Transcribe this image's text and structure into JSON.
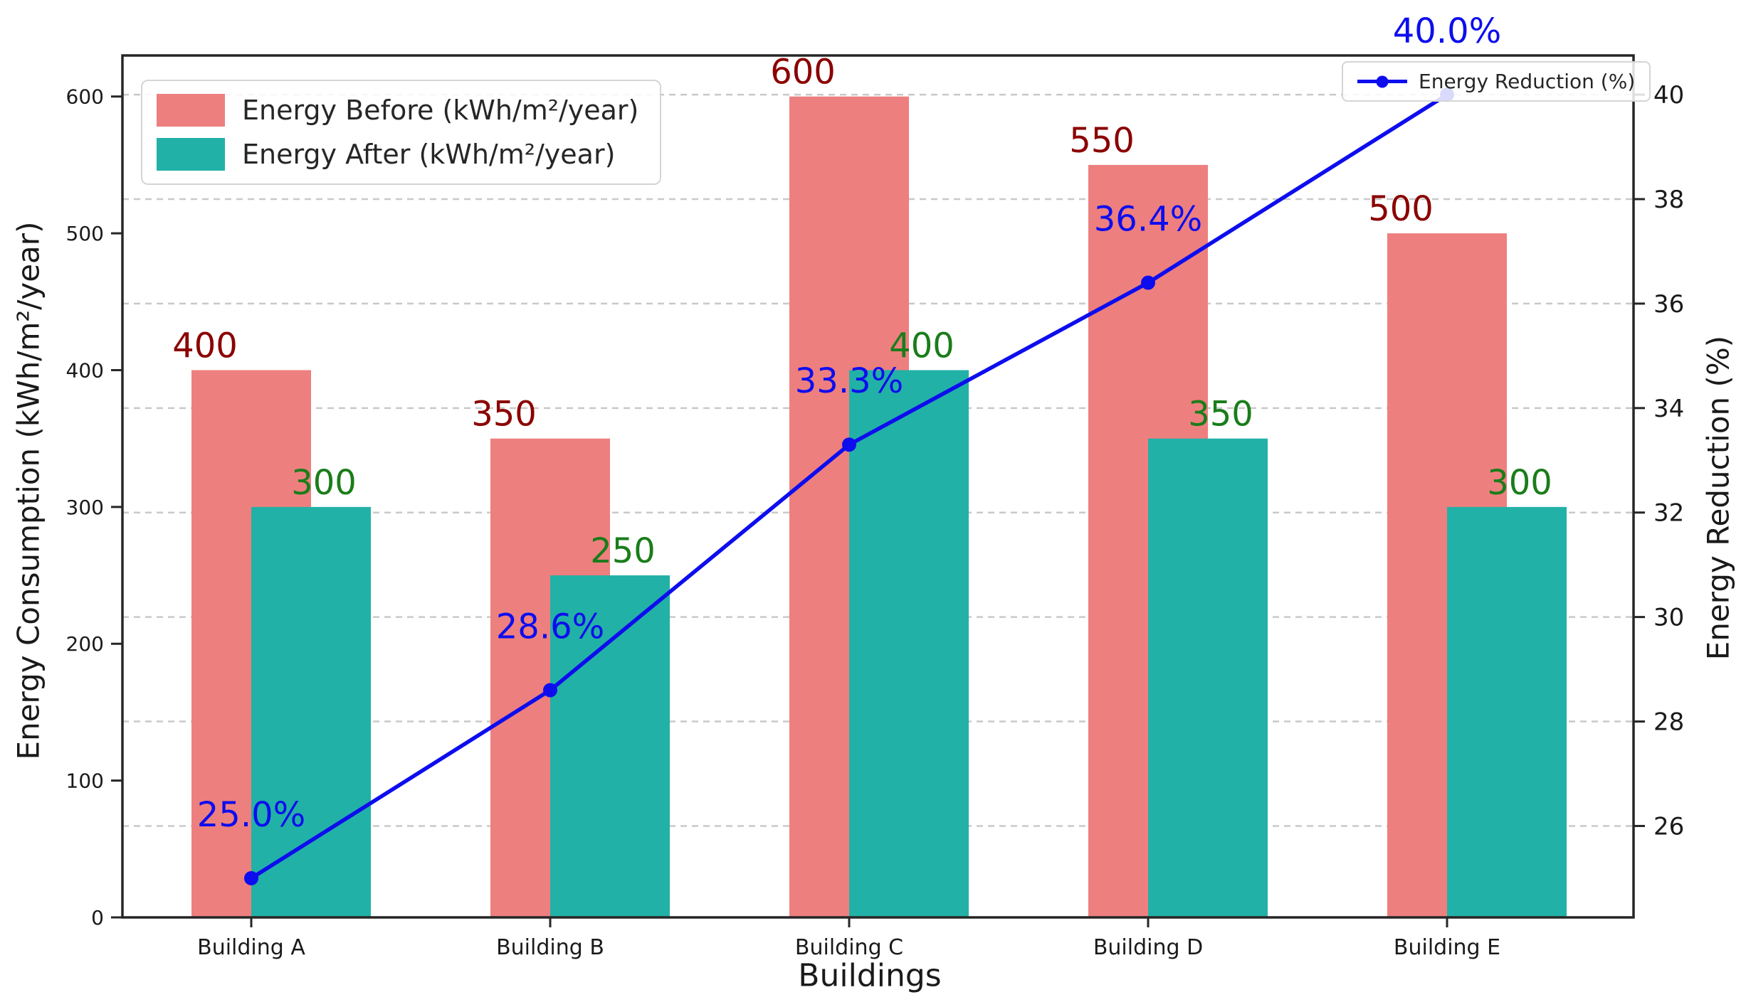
{
  "figure": {
    "xlabel": "Buildings",
    "ylabel_left": "Energy Consumption (kWh/m²/year)",
    "ylabel_right": "Energy Reduction (%)"
  },
  "chart_data": {
    "type": "bar",
    "subtype": "overlapped-bars-with-line-on-secondary-axis",
    "categories": [
      "Building A",
      "Building B",
      "Building C",
      "Building D",
      "Building E"
    ],
    "series": [
      {
        "name": "Energy Before (kWh/m²/year)",
        "type": "bar",
        "axis": "left",
        "color": "#EE7F7F",
        "label_color": "#8B0000",
        "values": [
          400,
          350,
          600,
          550,
          500
        ],
        "value_labels": [
          "400",
          "350",
          "600",
          "550",
          "500"
        ]
      },
      {
        "name": "Energy After (kWh/m²/year)",
        "type": "bar",
        "axis": "left",
        "color": "#22B1A7",
        "label_color": "#1A7D1A",
        "values": [
          300,
          250,
          400,
          350,
          300
        ],
        "value_labels": [
          "300",
          "250",
          "400",
          "350",
          "300"
        ]
      },
      {
        "name": "Energy Reduction (%)",
        "type": "line",
        "axis": "right",
        "color": "#0D0DEE",
        "marker": "circle",
        "values": [
          25.0,
          28.6,
          33.3,
          36.4,
          40.0
        ],
        "value_labels": [
          "25.0%",
          "28.6%",
          "33.3%",
          "36.4%",
          "40.0%"
        ]
      }
    ],
    "xlabel": "Buildings",
    "ylabel": "Energy Consumption (kWh/m²/year)",
    "ylabel_right": "Energy Reduction (%)",
    "y_axis_left": {
      "ticks": [
        0,
        100,
        200,
        300,
        400,
        500,
        600
      ],
      "range": [
        0,
        630
      ]
    },
    "y_axis_right": {
      "ticks": [
        26,
        28,
        30,
        32,
        34,
        36,
        38,
        40
      ],
      "range": [
        24.25,
        40.75
      ]
    },
    "grid": {
      "on": true,
      "follows": "right-axis-ticks",
      "style": "dashed",
      "color": "#c9c9c9"
    },
    "legend_positions": [
      "upper left",
      "upper right"
    ],
    "spine_color": "#262626",
    "tick_label_color": "#1a1a1a"
  }
}
